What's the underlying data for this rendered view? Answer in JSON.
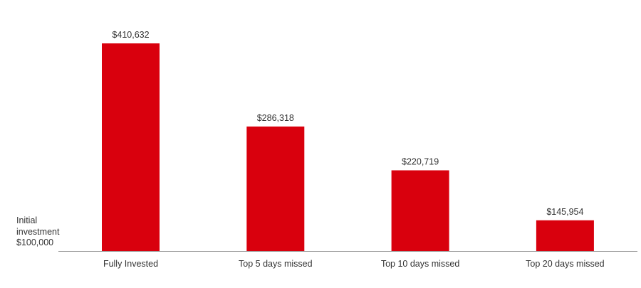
{
  "chart_data": {
    "type": "bar",
    "categories": [
      "Fully Invested",
      "Top 5 days missed",
      "Top 10 days missed",
      "Top 20 days missed"
    ],
    "values": [
      410632,
      286318,
      220719,
      145954
    ],
    "value_labels": [
      "$410,632",
      "$286,318",
      "$220,719",
      "$145,954"
    ],
    "baseline_value": 100000,
    "baseline_label": [
      "Initial",
      "investment",
      "$100,000"
    ],
    "title": "",
    "xlabel": "",
    "ylabel": "",
    "ylim": [
      100000,
      420000
    ],
    "grid": false,
    "legend": "none",
    "colors": {
      "bar": "#d9000d",
      "axis": "#999999",
      "text": "#333333"
    }
  }
}
